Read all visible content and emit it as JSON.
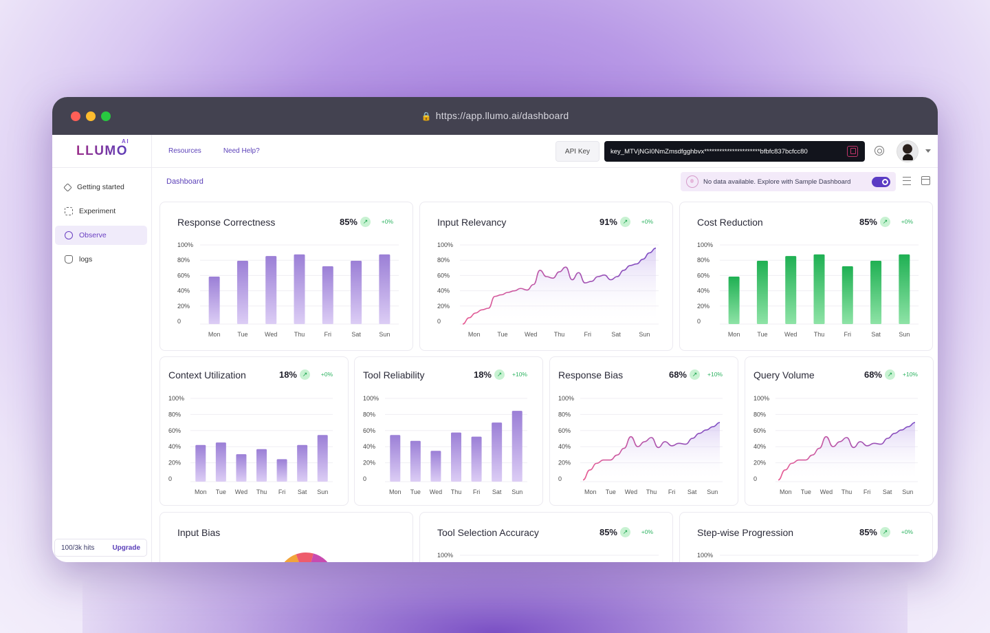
{
  "browser": {
    "url": "https://app.llumo.ai/dashboard",
    "dot_colors": [
      "#ff5f57",
      "#febc2e",
      "#28c840"
    ]
  },
  "sidebar": {
    "logo": "LLUMO",
    "logo_badge": "AI",
    "items": [
      {
        "label": "Getting started",
        "icon": "rocket-icon",
        "active": false
      },
      {
        "label": "Experiment",
        "icon": "grid-icon",
        "active": false
      },
      {
        "label": "Observe",
        "icon": "pie-icon",
        "active": true
      },
      {
        "label": "logs",
        "icon": "logs-icon",
        "active": false
      }
    ],
    "hits": "100/3k hits",
    "upgrade": "Upgrade"
  },
  "topbar": {
    "resources": "Resources",
    "help": "Need Help?",
    "api_key_label": "API Key",
    "api_key_value": "key_MTVjNGI0NmZmsdfgghbvx**********************bfbfc837bcfcc80"
  },
  "subbar": {
    "breadcrumb": "Dashboard",
    "sample_text": "No data available. Explore with Sample Dashboard",
    "sample_toggle_on": true
  },
  "colors": {
    "purple_bar_top": "#9b7fd6",
    "purple_bar_bottom": "#dccdf5",
    "green_bar_top": "#1fb053",
    "green_bar_bottom": "#8ee3a6",
    "line": "#7b4cc4"
  },
  "cards": [
    {
      "title": "Response Correctness",
      "value": "85%",
      "delta": "+0%",
      "type": "bar",
      "color": "purple"
    },
    {
      "title": "Input Relevancy",
      "value": "91%",
      "delta": "+0%",
      "type": "line"
    },
    {
      "title": "Cost Reduction",
      "value": "85%",
      "delta": "+0%",
      "type": "bar",
      "color": "green"
    },
    {
      "title": "Context Utilization",
      "value": "18%",
      "delta": "+0%",
      "type": "bar",
      "color": "purple"
    },
    {
      "title": "Tool Reliability",
      "value": "18%",
      "delta": "+10%",
      "type": "bar",
      "color": "purple"
    },
    {
      "title": "Response Bias",
      "value": "68%",
      "delta": "+10%",
      "type": "line"
    },
    {
      "title": "Query Volume",
      "value": "68%",
      "delta": "+10%",
      "type": "line"
    },
    {
      "title": "Input Bias",
      "value": "",
      "delta": "",
      "type": "pie"
    },
    {
      "title": "Tool Selection Accuracy",
      "value": "85%",
      "delta": "+0%",
      "type": "line"
    },
    {
      "title": "Step-wise Progression",
      "value": "85%",
      "delta": "+0%",
      "type": "line"
    }
  ],
  "chart_data": [
    {
      "type": "bar",
      "title": "Response Correctness",
      "categories": [
        "Mon",
        "Tue",
        "Wed",
        "Thu",
        "Fri",
        "Sat",
        "Sun"
      ],
      "values": [
        60,
        80,
        86,
        88,
        73,
        80,
        88
      ],
      "yticks": [
        "100%",
        "80%",
        "60%",
        "40%",
        "20%",
        "0"
      ],
      "ylim": [
        0,
        100
      ]
    },
    {
      "type": "line",
      "title": "Input Relevancy",
      "categories": [
        "Mon",
        "Tue",
        "Wed",
        "Thu",
        "Fri",
        "Sat",
        "Sun"
      ],
      "x": [
        0,
        0.2,
        0.4,
        0.6,
        0.8,
        1,
        1.2,
        1.4,
        1.6,
        1.8,
        2,
        2.2,
        2.4,
        2.6,
        2.8,
        3,
        3.2,
        3.4,
        3.6,
        3.8,
        4,
        4.2,
        4.4,
        4.6,
        4.8,
        5,
        5.2,
        5.4,
        5.6,
        5.8,
        6
      ],
      "values": [
        0,
        8,
        14,
        18,
        20,
        35,
        37,
        40,
        42,
        45,
        43,
        50,
        68,
        60,
        58,
        66,
        72,
        56,
        65,
        52,
        54,
        60,
        62,
        56,
        60,
        68,
        74,
        76,
        82,
        90,
        96
      ],
      "yticks": [
        "100%",
        "80%",
        "60%",
        "40%",
        "20%",
        "0"
      ],
      "ylim": [
        0,
        100
      ]
    },
    {
      "type": "bar",
      "title": "Cost Reduction",
      "categories": [
        "Mon",
        "Tue",
        "Wed",
        "Thu",
        "Fri",
        "Sat",
        "Sun"
      ],
      "values": [
        60,
        80,
        86,
        88,
        73,
        80,
        88
      ],
      "yticks": [
        "100%",
        "80%",
        "60%",
        "40%",
        "20%",
        "0"
      ],
      "ylim": [
        0,
        100
      ]
    },
    {
      "type": "bar",
      "title": "Context Utilization",
      "categories": [
        "Mon",
        "Tue",
        "Wed",
        "Thu",
        "Fri",
        "Sat",
        "Sun"
      ],
      "values": [
        44,
        47,
        33,
        39,
        27,
        44,
        56
      ],
      "yticks": [
        "100%",
        "80%",
        "60%",
        "40%",
        "20%",
        "0"
      ],
      "ylim": [
        0,
        100
      ]
    },
    {
      "type": "bar",
      "title": "Tool Reliability",
      "categories": [
        "Mon",
        "Tue",
        "Wed",
        "Thu",
        "Fri",
        "Sat",
        "Sun"
      ],
      "values": [
        56,
        49,
        37,
        59,
        54,
        71,
        85
      ],
      "yticks": [
        "100%",
        "80%",
        "60%",
        "40%",
        "20%",
        "0"
      ],
      "ylim": [
        0,
        100
      ]
    },
    {
      "type": "line",
      "title": "Response Bias",
      "categories": [
        "Mon",
        "Tue",
        "Wed",
        "Thu",
        "Fri",
        "Sat",
        "Sun"
      ],
      "x": [
        0,
        0.3,
        0.6,
        0.9,
        1.2,
        1.5,
        1.8,
        2.1,
        2.4,
        2.7,
        3,
        3.3,
        3.6,
        3.9,
        4.2,
        4.5,
        4.8,
        5.1,
        5.4,
        5.7,
        6
      ],
      "values": [
        2,
        14,
        22,
        26,
        26,
        32,
        40,
        54,
        42,
        48,
        53,
        41,
        48,
        43,
        46,
        45,
        52,
        58,
        62,
        66,
        71
      ],
      "yticks": [
        "100%",
        "80%",
        "60%",
        "40%",
        "20%",
        "0"
      ],
      "ylim": [
        0,
        100
      ]
    },
    {
      "type": "line",
      "title": "Query Volume",
      "categories": [
        "Mon",
        "Tue",
        "Wed",
        "Thu",
        "Fri",
        "Sat",
        "Sun"
      ],
      "x": [
        0,
        0.3,
        0.6,
        0.9,
        1.2,
        1.5,
        1.8,
        2.1,
        2.4,
        2.7,
        3,
        3.3,
        3.6,
        3.9,
        4.2,
        4.5,
        4.8,
        5.1,
        5.4,
        5.7,
        6
      ],
      "values": [
        2,
        14,
        22,
        26,
        26,
        32,
        40,
        54,
        42,
        48,
        53,
        41,
        48,
        43,
        46,
        45,
        52,
        58,
        62,
        66,
        71
      ],
      "yticks": [
        "100%",
        "80%",
        "60%",
        "40%",
        "20%",
        "0"
      ],
      "ylim": [
        0,
        100
      ]
    },
    {
      "type": "pie",
      "title": "Input Bias",
      "slices": [
        {
          "color": "#f2a43a"
        },
        {
          "color": "#ee5c6c"
        },
        {
          "color": "#c84bb0"
        }
      ]
    },
    {
      "type": "line",
      "title": "Tool Selection Accuracy",
      "yticks": [
        "100%"
      ]
    },
    {
      "type": "line",
      "title": "Step-wise Progression",
      "yticks": [
        "100%"
      ]
    }
  ]
}
